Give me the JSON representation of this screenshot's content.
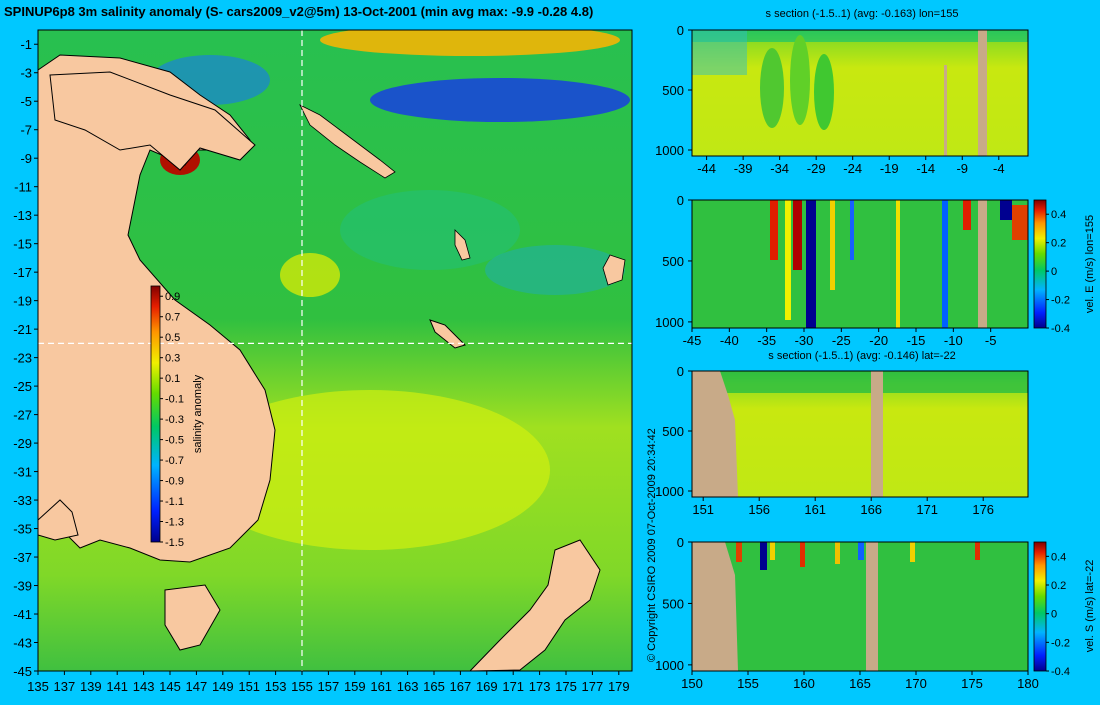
{
  "title": "SPINUP6p8 3m salinity anomaly (S- cars2009_v2@5m) 13-Oct-2001 (min avg max: -9.9 -0.28 4.8)",
  "copyright": "© Copyright CSIRO 2009   07-Oct-2009 20:34:42",
  "colors": {
    "background": "#00c8ff",
    "land": "#f8c8a0",
    "section_mask": "#c8aa88",
    "guide": "#ffffff"
  },
  "chart_data": [
    {
      "type": "heatmap",
      "id": "map",
      "title": "",
      "xlim": [
        135,
        180
      ],
      "ylim": [
        -45,
        0
      ],
      "x_ticks": [
        135,
        137,
        139,
        141,
        143,
        145,
        147,
        149,
        151,
        153,
        155,
        157,
        159,
        161,
        163,
        165,
        167,
        169,
        171,
        173,
        175,
        177,
        179
      ],
      "y_ticks": [
        -1,
        -3,
        -5,
        -7,
        -9,
        -11,
        -13,
        -15,
        -17,
        -19,
        -21,
        -23,
        -25,
        -27,
        -29,
        -31,
        -33,
        -35,
        -37,
        -39,
        -41,
        -43,
        -45
      ],
      "guide_lon": 155,
      "guide_lat": -22,
      "colorbar": {
        "label": "salinity anomaly",
        "ticks": [
          0.9,
          0.7,
          0.5,
          0.3,
          0.1,
          -0.1,
          -0.3,
          -0.5,
          -0.7,
          -0.9,
          -1.1,
          -1.3,
          -1.5
        ],
        "range": [
          -1.5,
          1.0
        ]
      }
    },
    {
      "type": "heatmap",
      "id": "p1",
      "title": "s section (-1.5..1) (avg: -0.163) lon=155",
      "xlim": [
        -46,
        0
      ],
      "ylim": [
        1050,
        0
      ],
      "x_ticks": [
        -44,
        -39,
        -34,
        -29,
        -24,
        -19,
        -14,
        -9,
        -4
      ],
      "y_ticks": [
        0,
        500,
        1000
      ]
    },
    {
      "type": "heatmap",
      "id": "p2",
      "title": "",
      "xlim": [
        -45,
        0
      ],
      "ylim": [
        1050,
        0
      ],
      "x_ticks": [
        -45,
        -40,
        -35,
        -30,
        -25,
        -20,
        -15,
        -10,
        -5
      ],
      "y_ticks": [
        0,
        500,
        1000
      ],
      "colorbar": {
        "label": "vel. E (m/s) lon=155",
        "ticks": [
          0.4,
          0.2,
          0,
          -0.2,
          -0.4
        ],
        "range": [
          -0.4,
          0.5
        ]
      }
    },
    {
      "type": "heatmap",
      "id": "p3",
      "title": "s section (-1.5..1) (avg: -0.146) lat=-22",
      "xlim": [
        150,
        180
      ],
      "ylim": [
        1050,
        0
      ],
      "x_ticks": [
        151,
        156,
        161,
        166,
        171,
        176
      ],
      "y_ticks": [
        0,
        500,
        1000
      ]
    },
    {
      "type": "heatmap",
      "id": "p4",
      "title": "",
      "xlim": [
        150,
        180
      ],
      "ylim": [
        1050,
        0
      ],
      "x_ticks": [
        150,
        155,
        160,
        165,
        170,
        175,
        180
      ],
      "y_ticks": [
        0,
        500,
        1000
      ],
      "colorbar": {
        "label": "vel. S (m/s) lat=-22",
        "ticks": [
          0.4,
          0.2,
          0,
          -0.2,
          -0.4
        ],
        "range": [
          -0.4,
          0.5
        ]
      }
    }
  ]
}
